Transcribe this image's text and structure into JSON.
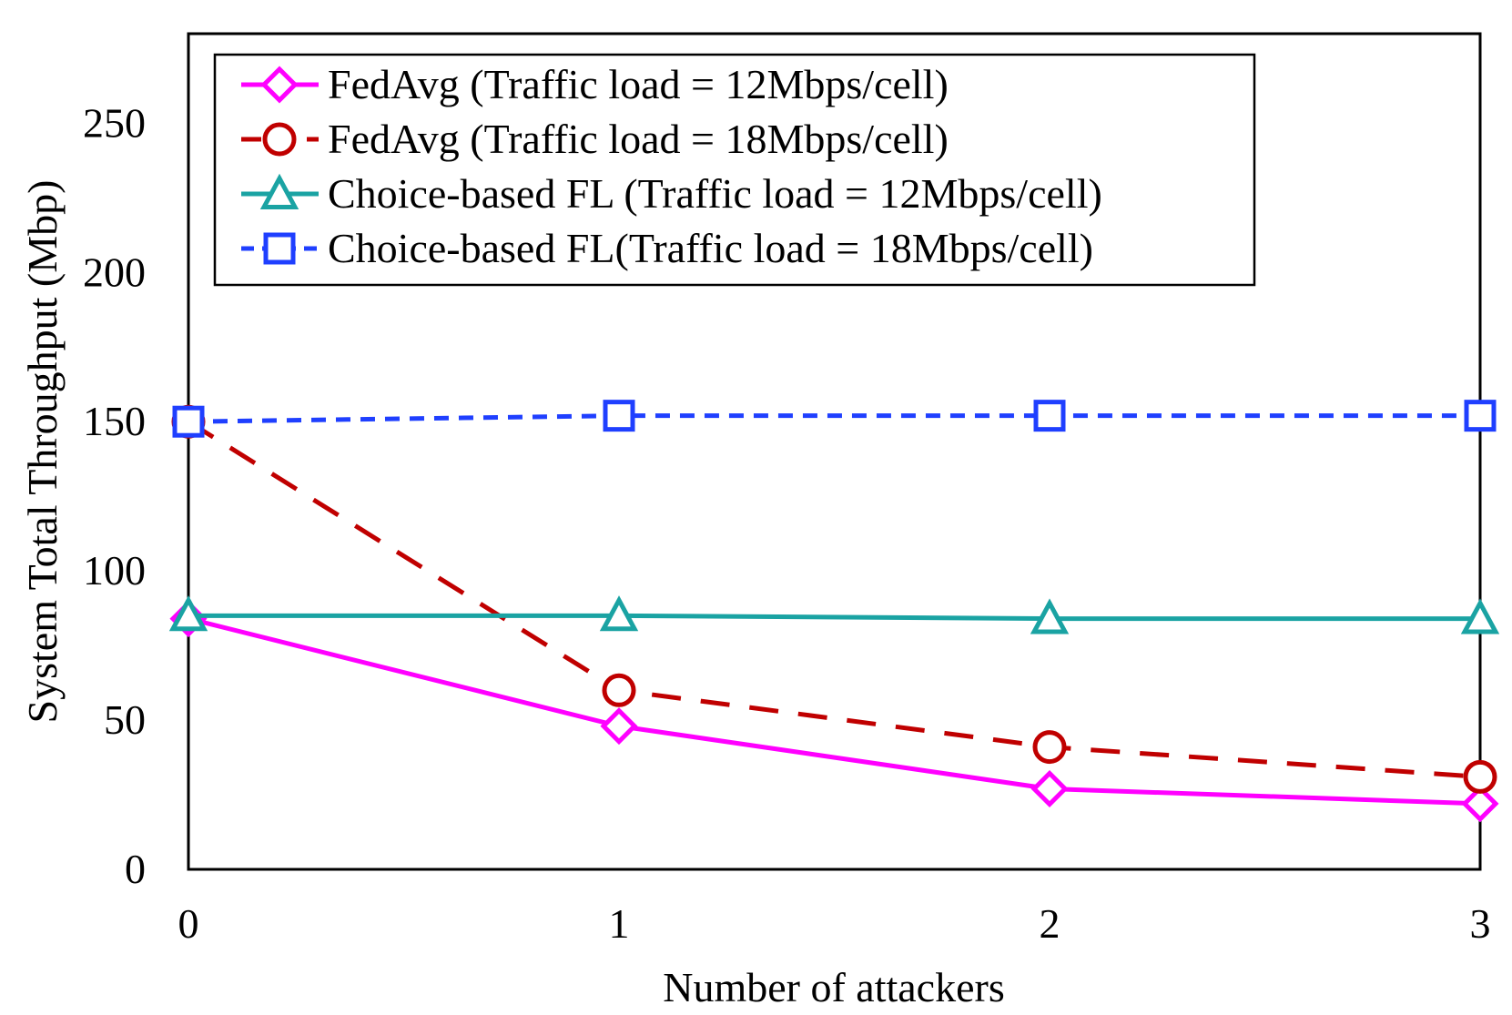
{
  "chart_data": {
    "type": "line",
    "xlabel": "Number of attackers",
    "ylabel": "System Total Throughput (Mbp)",
    "x": [
      0,
      1,
      2,
      3
    ],
    "xticks": [
      "0",
      "1",
      "2",
      "3"
    ],
    "xlim": [
      0,
      3
    ],
    "ylim": [
      0,
      280
    ],
    "yticks": [
      "0",
      "50",
      "100",
      "150",
      "200",
      "250"
    ],
    "grid": false,
    "legend_position": "top-left",
    "series": [
      {
        "name": "FedAvg (Traffic load = 12Mbps/cell)",
        "values": [
          84,
          48,
          27,
          22
        ],
        "color": "#ff00ff",
        "marker": "diamond",
        "line": "solid"
      },
      {
        "name": "FedAvg (Traffic load = 18Mbps/cell)",
        "values": [
          150,
          60,
          41,
          31
        ],
        "color": "#c00000",
        "marker": "circle",
        "line": "dashed"
      },
      {
        "name": "Choice-based FL (Traffic load = 12Mbps/cell)",
        "values": [
          85,
          85,
          84,
          84
        ],
        "color": "#1aa3a3",
        "marker": "triangle",
        "line": "solid"
      },
      {
        "name": "Choice-based FL(Traffic load = 18Mbps/cell)",
        "values": [
          150,
          152,
          152,
          152
        ],
        "color": "#1f3fff",
        "marker": "square",
        "line": "dotted"
      }
    ]
  }
}
